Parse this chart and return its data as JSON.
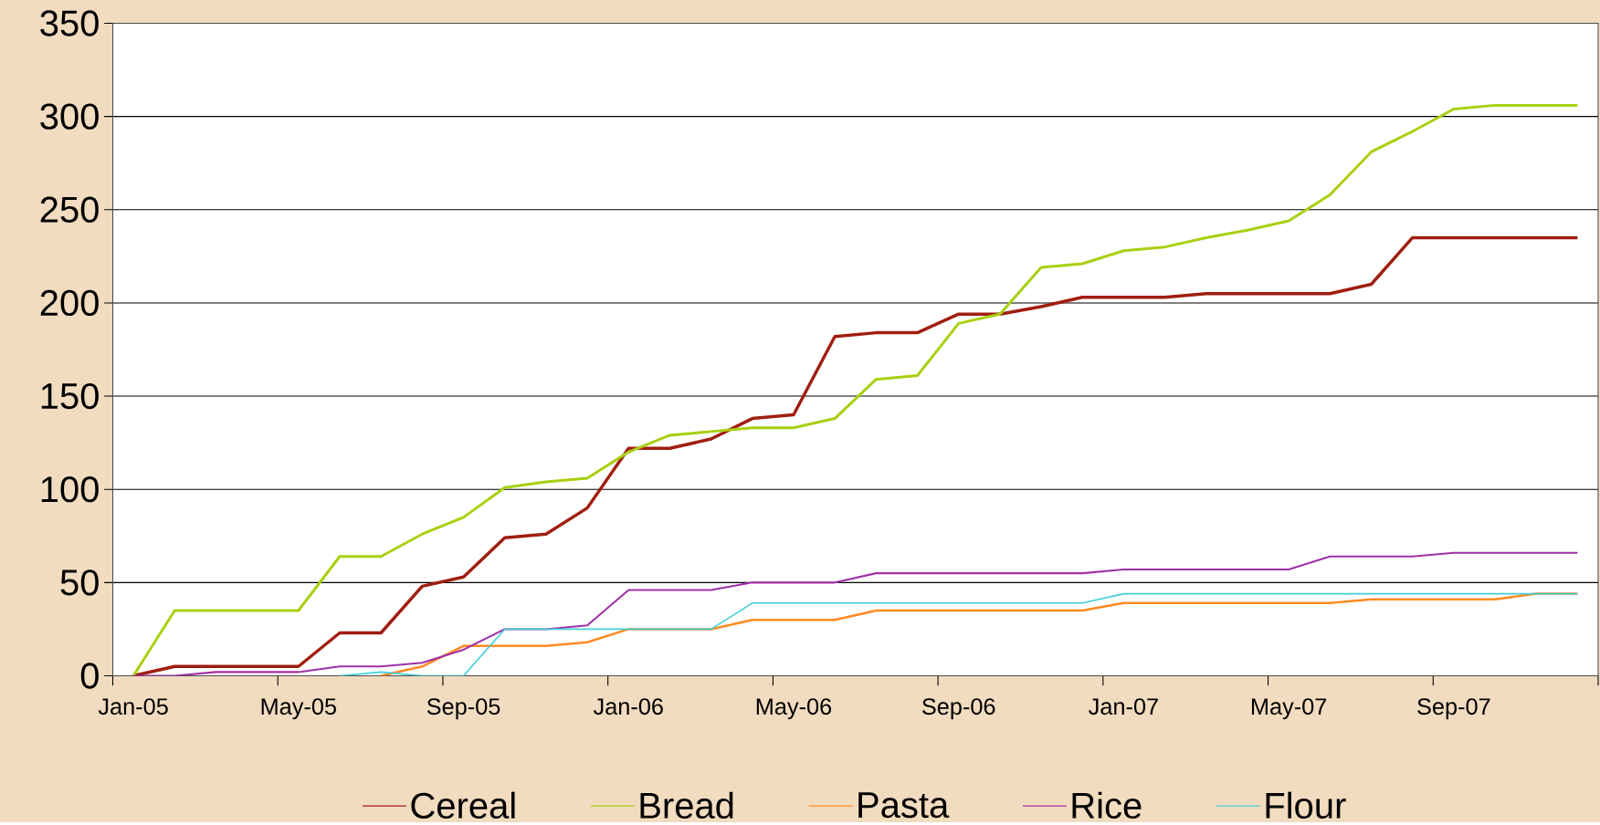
{
  "chart_data": {
    "type": "line",
    "categories": [
      "Jan-05",
      null,
      null,
      null,
      "May-05",
      null,
      null,
      null,
      "Sep-05",
      null,
      null,
      null,
      "Jan-06",
      null,
      null,
      null,
      "May-06",
      null,
      null,
      null,
      "Sep-06",
      null,
      null,
      null,
      "Jan-07",
      null,
      null,
      null,
      "May-07",
      null,
      null,
      null,
      "Sep-07",
      null,
      null,
      null
    ],
    "series": [
      {
        "name": "Cereal",
        "color": "#a01e10",
        "values": [
          0,
          5,
          5,
          5,
          5,
          23,
          23,
          48,
          53,
          74,
          76,
          90,
          122,
          122,
          127,
          138,
          140,
          182,
          184,
          184,
          194,
          194,
          198,
          203,
          203,
          203,
          205,
          205,
          205,
          205,
          210,
          235,
          235,
          235,
          235,
          235
        ]
      },
      {
        "name": "Bread",
        "color": "#a8d010",
        "values": [
          0,
          35,
          35,
          35,
          35,
          64,
          64,
          76,
          85,
          101,
          104,
          106,
          120,
          129,
          131,
          133,
          133,
          138,
          159,
          161,
          189,
          194,
          219,
          221,
          228,
          230,
          235,
          239,
          244,
          258,
          281,
          292,
          304,
          306,
          306,
          306
        ]
      },
      {
        "name": "Pasta",
        "color": "#ff8a20",
        "values": [
          null,
          null,
          null,
          null,
          null,
          null,
          0,
          5,
          16,
          16,
          16,
          18,
          25,
          25,
          25,
          30,
          30,
          30,
          35,
          35,
          35,
          35,
          35,
          35,
          39,
          39,
          39,
          39,
          39,
          39,
          41,
          41,
          41,
          41,
          44,
          44
        ]
      },
      {
        "name": "Rice",
        "color": "#a030a8",
        "values": [
          0,
          0,
          2,
          2,
          2,
          5,
          5,
          7,
          14,
          25,
          25,
          27,
          46,
          46,
          46,
          50,
          50,
          50,
          55,
          55,
          55,
          55,
          55,
          55,
          57,
          57,
          57,
          57,
          57,
          64,
          64,
          64,
          66,
          66,
          66,
          66
        ]
      },
      {
        "name": "Flour",
        "color": "#40d0d8",
        "values": [
          null,
          null,
          null,
          null,
          null,
          0,
          2,
          0,
          0,
          25,
          25,
          25,
          25,
          25,
          25,
          39,
          39,
          39,
          39,
          39,
          39,
          39,
          39,
          39,
          44,
          44,
          44,
          44,
          44,
          44,
          44,
          44,
          44,
          44,
          44,
          44
        ]
      }
    ],
    "ylim": [
      0,
      350
    ],
    "yticks": [
      0,
      50,
      100,
      150,
      200,
      250,
      300,
      350
    ],
    "grid": "y",
    "legend": "bottom",
    "marker": "none",
    "line_style": "solid"
  }
}
